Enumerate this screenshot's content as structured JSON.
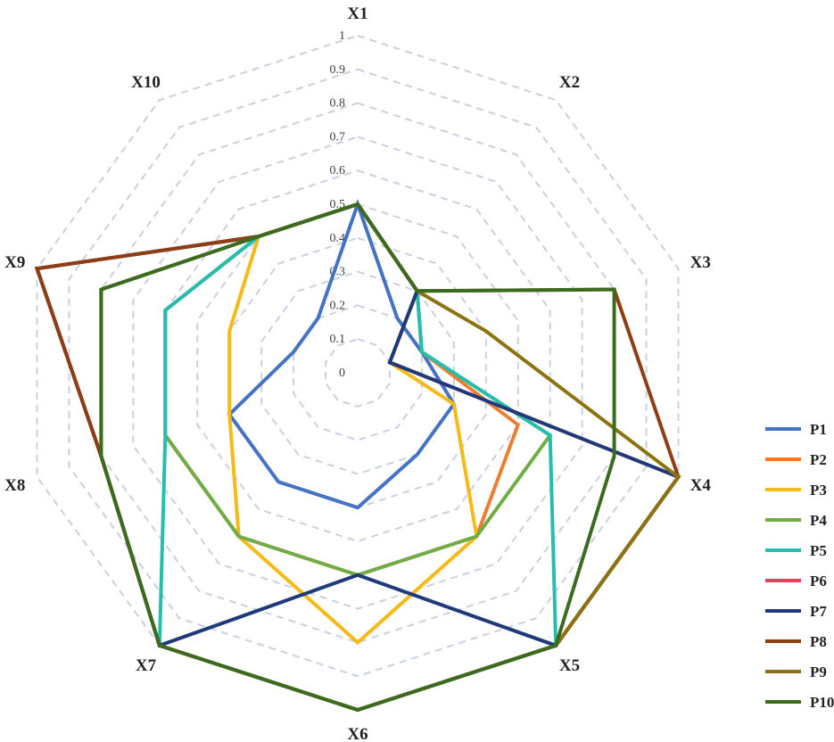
{
  "chart_data": {
    "type": "radar",
    "title": "",
    "axes": [
      "X1",
      "X2",
      "X3",
      "X4",
      "X5",
      "X6",
      "X7",
      "X8",
      "X9",
      "X10"
    ],
    "ticks": [
      "0",
      "0.1",
      "0.2",
      "0.3",
      "0.4",
      "0.5",
      "0.6",
      "0.7",
      "0.8",
      "0.9",
      "1"
    ],
    "range": [
      0,
      1
    ],
    "grid": "dashed",
    "legend_position": "right",
    "series": [
      {
        "name": "P1",
        "color": "#4472C4",
        "values": [
          0.5,
          0.2,
          0.2,
          0.3,
          0.3,
          0.4,
          0.4,
          0.4,
          0.2,
          0.2
        ]
      },
      {
        "name": "P2",
        "color": "#ED7D31",
        "values": [
          0.5,
          0.3,
          0.2,
          0.5,
          0.6,
          0.6,
          0.6,
          0.6,
          0.6,
          0.5
        ]
      },
      {
        "name": "P3",
        "color": "#F5BA18",
        "values": [
          0.5,
          0.3,
          0.1,
          0.3,
          0.6,
          0.8,
          0.6,
          0.4,
          0.4,
          0.5
        ]
      },
      {
        "name": "P4",
        "color": "#70AD47",
        "values": [
          0.5,
          0.3,
          0.2,
          0.6,
          0.6,
          0.6,
          0.6,
          0.6,
          0.6,
          0.5
        ]
      },
      {
        "name": "P5",
        "color": "#26BDAF",
        "values": [
          0.5,
          0.3,
          0.2,
          0.6,
          1.0,
          1.0,
          1.0,
          0.6,
          0.6,
          0.5
        ]
      },
      {
        "name": "P6",
        "color": "#E83E5A",
        "values": [
          0.5,
          0.3,
          0.1,
          1.0,
          1.0,
          1.0,
          1.0,
          0.8,
          1.0,
          0.5
        ]
      },
      {
        "name": "P7",
        "color": "#1F3A7A",
        "values": [
          0.5,
          0.3,
          0.1,
          1.0,
          1.0,
          0.6,
          1.0,
          0.8,
          1.0,
          0.5
        ]
      },
      {
        "name": "P8",
        "color": "#8E3E12",
        "values": [
          0.5,
          0.3,
          0.8,
          1.0,
          1.0,
          1.0,
          1.0,
          0.8,
          1.0,
          0.5
        ]
      },
      {
        "name": "P9",
        "color": "#8C7310",
        "values": [
          0.5,
          0.3,
          0.4,
          1.0,
          1.0,
          1.0,
          1.0,
          0.8,
          0.8,
          0.5
        ]
      },
      {
        "name": "P10",
        "color": "#3A6B1E",
        "values": [
          0.5,
          0.3,
          0.8,
          0.8,
          1.0,
          1.0,
          1.0,
          0.8,
          0.8,
          0.5
        ]
      }
    ]
  }
}
